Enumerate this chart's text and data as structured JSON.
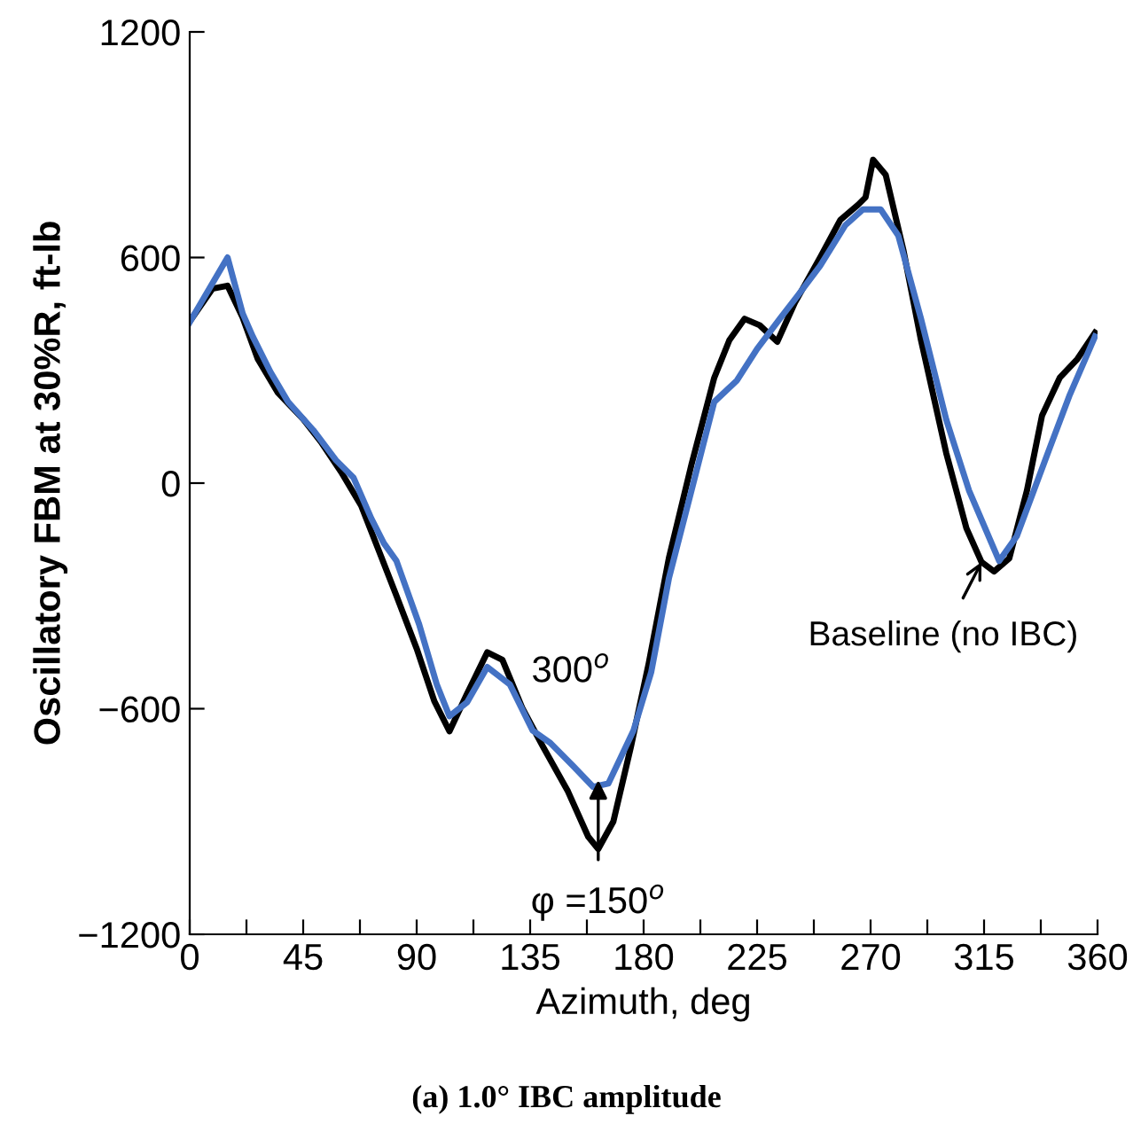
{
  "chart_data": {
    "type": "line",
    "xlabel": "Azimuth, deg",
    "ylabel": "Oscillatory FBM at 30%R, ft-lb",
    "xlim": [
      0,
      360
    ],
    "ylim": [
      -1200,
      1200
    ],
    "xticks": [
      0,
      {
        "value": 22.5,
        "label": null
      },
      45,
      {
        "value": 67.5,
        "label": null
      },
      90,
      {
        "value": 112.5,
        "label": null
      },
      135,
      {
        "value": 157.5,
        "label": null
      },
      180,
      {
        "value": 202.5,
        "label": null
      },
      225,
      {
        "value": 247.5,
        "label": null
      },
      270,
      {
        "value": 292.5,
        "label": null
      },
      315,
      {
        "value": 337.5,
        "label": null
      },
      360
    ],
    "yticks": [
      -1200,
      -600,
      0,
      600,
      1200
    ],
    "grid": false,
    "legend": false,
    "marker": "none",
    "line_style": "solid",
    "series": [
      {
        "color": "#000000",
        "x": [
          0,
          9,
          15,
          21,
          27,
          35,
          45,
          52,
          60,
          68,
          75,
          82,
          90,
          97,
          103,
          110,
          118,
          124,
          132,
          140,
          150,
          158,
          162,
          168,
          175,
          182,
          190,
          199,
          208,
          214,
          220,
          226,
          233,
          240,
          250,
          258,
          265,
          268,
          271,
          276,
          283,
          290,
          300,
          308,
          314,
          319,
          325,
          332,
          338,
          345,
          352,
          359
        ],
        "values": [
          430,
          517,
          525,
          440,
          330,
          240,
          170,
          110,
          30,
          -60,
          -180,
          -300,
          -440,
          -580,
          -660,
          -560,
          -450,
          -470,
          -600,
          -700,
          -820,
          -940,
          -973,
          -900,
          -700,
          -480,
          -200,
          50,
          280,
          380,
          437,
          420,
          376,
          480,
          600,
          700,
          740,
          760,
          860,
          820,
          620,
          380,
          80,
          -120,
          -210,
          -235,
          -200,
          -20,
          180,
          280,
          330,
          400
        ]
      },
      {
        "color": "#4472c4",
        "x": [
          0,
          15,
          21,
          25,
          32,
          39,
          49,
          58,
          65,
          72,
          77,
          82,
          91,
          98,
          103,
          110,
          118,
          127,
          136,
          143,
          152,
          160,
          166,
          176,
          183,
          190,
          199,
          208,
          217,
          225,
          234,
          241,
          250,
          260,
          267,
          274,
          281,
          290,
          300,
          309,
          321,
          328,
          340,
          349,
          359
        ],
        "values": [
          428,
          600,
          451,
          390,
          296,
          216,
          141,
          61,
          14,
          -94,
          -160,
          -207,
          -376,
          -536,
          -620,
          -583,
          -489,
          -536,
          -658,
          -691,
          -752,
          -808,
          -799,
          -658,
          -503,
          -254,
          -19,
          216,
          273,
          357,
          437,
          498,
          578,
          686,
          728,
          728,
          658,
          437,
          169,
          -19,
          -207,
          -141,
          75,
          235,
          390
        ]
      }
    ],
    "annotations": [
      "300$^{o}$",
      {
        "text": "φ =150$^{o}$",
        "x": 162,
        "y": -790
      },
      {
        "text": "Baseline (no IBC)",
        "x": 314,
        "y": -210
      },
      "(a) 1.0° IBC amplitude"
    ]
  }
}
